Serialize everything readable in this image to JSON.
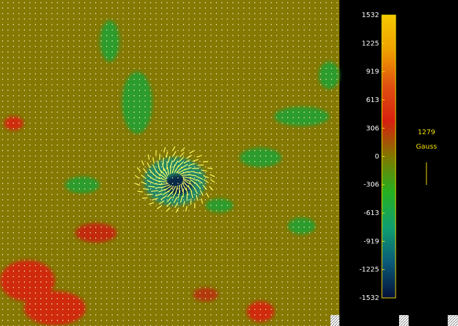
{
  "chart_data": {
    "type": "colorbar",
    "ylim": [
      -1532,
      1532
    ],
    "yticks": [
      -1532,
      -1225,
      -919,
      -613,
      -306,
      0,
      306,
      613,
      919,
      1225,
      1532
    ],
    "colormap": [
      "#05103a",
      "#0a5a78",
      "#10a070",
      "#25b020",
      "#807800",
      "#d82010",
      "#e05010",
      "#f0a000",
      "#f5c800"
    ],
    "vector_scale": "1279",
    "unit": "Gauss"
  }
}
